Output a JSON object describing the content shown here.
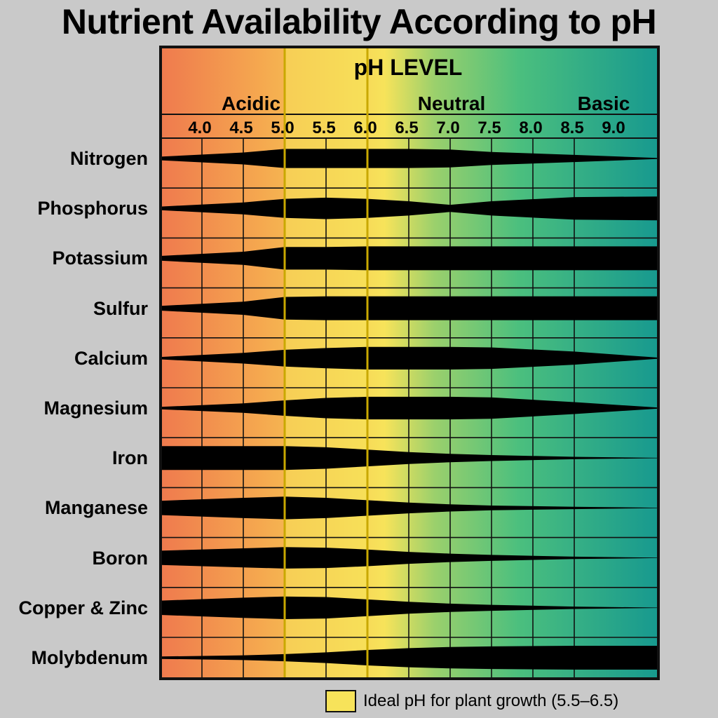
{
  "chart_data": {
    "type": "table",
    "title": "Nutrient Availability According to pH",
    "axis_title": "pH LEVEL",
    "regions": [
      "Acidic",
      "Neutral",
      "Basic"
    ],
    "x_ticks": [
      "4.0",
      "4.5",
      "5.0",
      "5.5",
      "6.0",
      "6.5",
      "7.0",
      "7.5",
      "8.0",
      "8.5",
      "9.0"
    ],
    "xlim": [
      4.0,
      10.0
    ],
    "highlight_range": [
      5.5,
      6.5
    ],
    "legend_label": "Ideal pH for plant growth (5.5–6.5)",
    "profile_ph": [
      4.0,
      5.0,
      5.5,
      6.0,
      6.5,
      7.0,
      7.5,
      8.0,
      9.0,
      10.0
    ],
    "nutrients": [
      {
        "name": "Nitrogen",
        "availability": [
          0.15,
          0.5,
          0.8,
          0.8,
          0.8,
          0.8,
          0.75,
          0.55,
          0.3,
          0.05
        ]
      },
      {
        "name": "Phosphorus",
        "availability": [
          0.15,
          0.5,
          0.8,
          0.9,
          0.8,
          0.6,
          0.3,
          0.6,
          0.95,
          1.0
        ]
      },
      {
        "name": "Potassium",
        "availability": [
          0.2,
          0.55,
          0.95,
          0.95,
          1.0,
          1.0,
          1.0,
          1.0,
          1.0,
          1.0
        ]
      },
      {
        "name": "Sulfur",
        "availability": [
          0.2,
          0.55,
          0.95,
          1.0,
          1.0,
          1.0,
          1.0,
          1.0,
          1.0,
          1.0
        ]
      },
      {
        "name": "Calcium",
        "availability": [
          0.1,
          0.45,
          0.7,
          0.85,
          0.95,
          0.95,
          0.95,
          0.9,
          0.55,
          0.05
        ]
      },
      {
        "name": "Magnesium",
        "availability": [
          0.1,
          0.4,
          0.65,
          0.85,
          0.95,
          0.95,
          0.95,
          0.9,
          0.5,
          0.05
        ]
      },
      {
        "name": "Iron",
        "availability": [
          1.0,
          1.0,
          1.0,
          0.9,
          0.7,
          0.5,
          0.35,
          0.25,
          0.1,
          0.02
        ]
      },
      {
        "name": "Manganese",
        "availability": [
          0.6,
          0.85,
          0.95,
          0.85,
          0.65,
          0.45,
          0.3,
          0.2,
          0.1,
          0.02
        ]
      },
      {
        "name": "Boron",
        "availability": [
          0.6,
          0.8,
          0.9,
          0.85,
          0.7,
          0.5,
          0.35,
          0.25,
          0.1,
          0.02
        ]
      },
      {
        "name": "Copper & Zinc",
        "availability": [
          0.6,
          0.85,
          0.95,
          0.9,
          0.7,
          0.5,
          0.35,
          0.25,
          0.1,
          0.02
        ]
      },
      {
        "name": "Molybdenum",
        "availability": [
          0.1,
          0.2,
          0.3,
          0.45,
          0.65,
          0.8,
          0.9,
          0.95,
          1.0,
          1.0
        ]
      }
    ],
    "colors": {
      "acidic": "#ef7a4e",
      "mid": "#f5a84f",
      "ideal": "#f7e35a",
      "neutral": "#9bd06c",
      "basic": "#17998f",
      "band": "#000000",
      "page": "#c9c9c9"
    }
  }
}
